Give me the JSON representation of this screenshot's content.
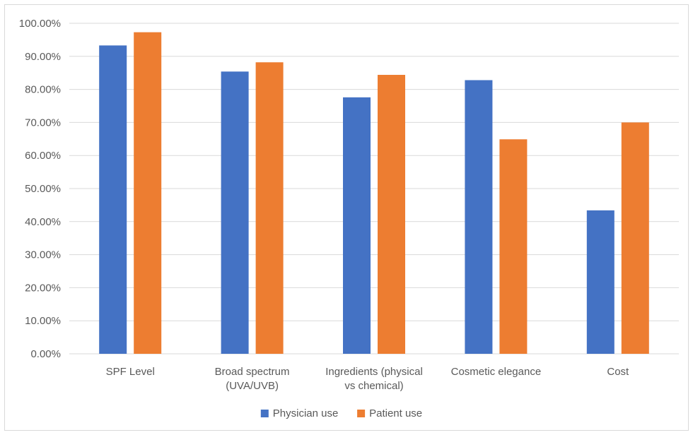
{
  "chart_data": {
    "type": "bar",
    "categories": [
      [
        "SPF Level"
      ],
      [
        "Broad spectrum",
        "(UVA/UVB)"
      ],
      [
        "Ingredients (physical",
        "vs chemical)"
      ],
      [
        "Cosmetic elegance"
      ],
      [
        "Cost"
      ]
    ],
    "series": [
      {
        "name": "Physician use",
        "color": "#4472c4",
        "values": [
          93.3,
          85.4,
          77.6,
          82.8,
          43.4
        ]
      },
      {
        "name": "Patient use",
        "color": "#ed7d31",
        "values": [
          97.3,
          88.2,
          84.4,
          64.9,
          70.0
        ]
      }
    ],
    "ylim": [
      0,
      100
    ],
    "yticks": [
      "0.00%",
      "10.00%",
      "20.00%",
      "30.00%",
      "40.00%",
      "50.00%",
      "60.00%",
      "70.00%",
      "80.00%",
      "90.00%",
      "100.00%"
    ],
    "title": "",
    "xlabel": "",
    "ylabel": "",
    "grid": true,
    "legend_position": "bottom"
  }
}
